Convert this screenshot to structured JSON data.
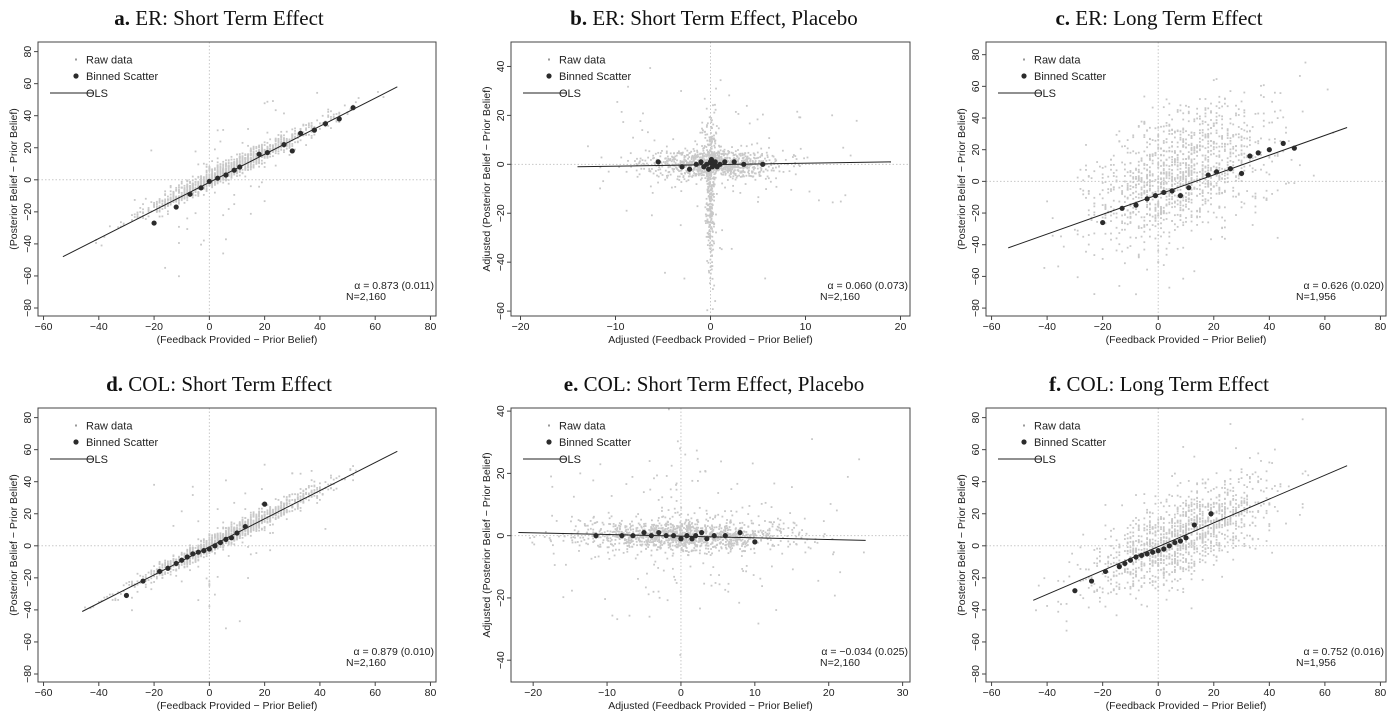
{
  "figure": {
    "legend_labels": [
      "Raw data",
      "Binned Scatter",
      "OLS"
    ],
    "colors": {
      "raw": "#c8c8c8",
      "binned": "#2b2b2b",
      "ols": "#222222",
      "refline": "#c8c8c8",
      "frame": "#444444"
    }
  },
  "chart_data": [
    {
      "id": "a",
      "type": "scatter",
      "title_letter": "a.",
      "title_text": "ER: Short Term Effect",
      "xlabel": "(Feedback Provided − Prior Belief)",
      "ylabel": "(Posterior Belief − Prior Belief)",
      "xlim": [
        -62,
        82
      ],
      "ylim": [
        -85,
        86
      ],
      "xticks": [
        -60,
        -40,
        -20,
        0,
        20,
        40,
        60,
        80
      ],
      "yticks": [
        -80,
        -60,
        -40,
        -20,
        0,
        20,
        40,
        60,
        80
      ],
      "xtick_labels": [
        "−60",
        "−40",
        "−20",
        "0",
        "20",
        "40",
        "60",
        "80"
      ],
      "ytick_labels": [
        "−80",
        "−60",
        "−40",
        "−20",
        "0",
        "20",
        "40",
        "60",
        "80"
      ],
      "raw_pattern": "diagonal",
      "raw_slope": 0.87,
      "raw_xrange": [
        -45,
        65
      ],
      "raw_noise": 3,
      "binned": [
        [
          -20,
          -27
        ],
        [
          -12,
          -17
        ],
        [
          -7,
          -9
        ],
        [
          -3,
          -5
        ],
        [
          0,
          -1
        ],
        [
          3,
          1
        ],
        [
          6,
          3
        ],
        [
          9,
          6
        ],
        [
          11,
          8
        ],
        [
          18,
          16
        ],
        [
          21,
          17
        ],
        [
          27,
          22
        ],
        [
          30,
          18
        ],
        [
          33,
          29
        ],
        [
          38,
          31
        ],
        [
          42,
          35
        ],
        [
          47,
          38
        ],
        [
          52,
          45
        ]
      ],
      "ols": [
        [
          -53,
          -48
        ],
        [
          68,
          58
        ]
      ],
      "legend": [
        "Raw data",
        "Binned Scatter",
        "OLS"
      ],
      "annotation": {
        "alpha": "α = 0.873 (0.011)",
        "n": "N=2,160"
      }
    },
    {
      "id": "b",
      "type": "scatter",
      "title_letter": "b.",
      "title_text": "ER: Short Term Effect, Placebo",
      "xlabel": "Adjusted (Feedback Provided − Prior Belief)",
      "ylabel": "Adjusted (Posterior Belief − Prior Belief)",
      "xlim": [
        -21,
        21
      ],
      "ylim": [
        -62,
        50
      ],
      "xticks": [
        -20,
        -10,
        0,
        10,
        20
      ],
      "yticks": [
        -60,
        -40,
        -20,
        0,
        20,
        40
      ],
      "xtick_labels": [
        "−20",
        "−10",
        "0",
        "10",
        "20"
      ],
      "ytick_labels": [
        "−60",
        "−40",
        "−20",
        "0",
        "20",
        "40"
      ],
      "raw_pattern": "cross_b",
      "binned": [
        [
          -5.5,
          1
        ],
        [
          -3,
          -1
        ],
        [
          -2.2,
          -2
        ],
        [
          -1.5,
          0
        ],
        [
          -1,
          1
        ],
        [
          -0.7,
          -1
        ],
        [
          -0.4,
          0
        ],
        [
          -0.2,
          -2
        ],
        [
          0,
          1
        ],
        [
          0.1,
          2
        ],
        [
          0.2,
          -1
        ],
        [
          0.3,
          0
        ],
        [
          0.5,
          1
        ],
        [
          0.7,
          -1
        ],
        [
          1,
          0
        ],
        [
          1.5,
          1
        ],
        [
          2.5,
          1
        ],
        [
          3.5,
          0
        ],
        [
          5.5,
          0
        ]
      ],
      "ols": [
        [
          -14,
          -1
        ],
        [
          19,
          1
        ]
      ],
      "legend": [
        "Raw data",
        "Binned Scatter",
        "OLS"
      ],
      "annotation": {
        "alpha": "α = 0.060 (0.073)",
        "n": "N=2,160"
      }
    },
    {
      "id": "c",
      "type": "scatter",
      "title_letter": "c.",
      "title_text": "ER: Long Term Effect",
      "xlabel": "(Feedback Provided − Prior Belief)",
      "ylabel": "(Posterior Belief − Prior Belief)",
      "xlim": [
        -62,
        82
      ],
      "ylim": [
        -85,
        88
      ],
      "xticks": [
        -60,
        -40,
        -20,
        0,
        20,
        40,
        60,
        80
      ],
      "yticks": [
        -80,
        -60,
        -40,
        -20,
        0,
        20,
        40,
        60,
        80
      ],
      "xtick_labels": [
        "−60",
        "−40",
        "−20",
        "0",
        "20",
        "40",
        "60",
        "80"
      ],
      "ytick_labels": [
        "−80",
        "−60",
        "−40",
        "−20",
        "0",
        "20",
        "40",
        "60",
        "80"
      ],
      "raw_pattern": "diagonal",
      "raw_slope": 0.63,
      "raw_xrange": [
        -45,
        65
      ],
      "raw_noise": 20,
      "binned": [
        [
          -20,
          -26
        ],
        [
          -13,
          -17
        ],
        [
          -8,
          -15
        ],
        [
          -4,
          -11
        ],
        [
          -1,
          -9
        ],
        [
          2,
          -7
        ],
        [
          5,
          -6
        ],
        [
          8,
          -9
        ],
        [
          11,
          -4
        ],
        [
          18,
          4
        ],
        [
          21,
          6
        ],
        [
          26,
          8
        ],
        [
          30,
          5
        ],
        [
          33,
          16
        ],
        [
          36,
          18
        ],
        [
          40,
          20
        ],
        [
          45,
          24
        ],
        [
          49,
          21
        ]
      ],
      "ols": [
        [
          -54,
          -42
        ],
        [
          68,
          34
        ]
      ],
      "legend": [
        "Raw data",
        "Binned Scatter",
        "OLS"
      ],
      "annotation": {
        "alpha": "α = 0.626 (0.020)",
        "n": "N=1,956"
      }
    },
    {
      "id": "d",
      "type": "scatter",
      "title_letter": "d.",
      "title_text": "COL: Short Term Effect",
      "xlabel": "(Feedback Provided − Prior Belief)",
      "ylabel": "(Posterior Belief − Prior Belief)",
      "xlim": [
        -62,
        82
      ],
      "ylim": [
        -85,
        86
      ],
      "xticks": [
        -60,
        -40,
        -20,
        0,
        20,
        40,
        60,
        80
      ],
      "yticks": [
        -80,
        -60,
        -40,
        -20,
        0,
        20,
        40,
        60,
        80
      ],
      "xtick_labels": [
        "−60",
        "−40",
        "−20",
        "0",
        "20",
        "40",
        "60",
        "80"
      ],
      "ytick_labels": [
        "−80",
        "−60",
        "−40",
        "−20",
        "0",
        "20",
        "40",
        "60",
        "80"
      ],
      "raw_pattern": "diagonal",
      "raw_slope": 0.88,
      "raw_xrange": [
        -45,
        55
      ],
      "raw_noise": 3,
      "binned": [
        [
          -30,
          -31
        ],
        [
          -24,
          -22
        ],
        [
          -18,
          -16
        ],
        [
          -15,
          -14
        ],
        [
          -12,
          -11
        ],
        [
          -10,
          -9
        ],
        [
          -8,
          -7
        ],
        [
          -6,
          -5
        ],
        [
          -4,
          -4
        ],
        [
          -2,
          -3
        ],
        [
          0,
          -2
        ],
        [
          2,
          0
        ],
        [
          4,
          2
        ],
        [
          6,
          4
        ],
        [
          8,
          5
        ],
        [
          10,
          8
        ],
        [
          13,
          12
        ],
        [
          20,
          26
        ]
      ],
      "ols": [
        [
          -46,
          -41
        ],
        [
          68,
          59
        ]
      ],
      "legend": [
        "Raw data",
        "Binned Scatter",
        "OLS"
      ],
      "annotation": {
        "alpha": "α = 0.879 (0.010)",
        "n": "N=2,160"
      }
    },
    {
      "id": "e",
      "type": "scatter",
      "title_letter": "e.",
      "title_text": "COL: Short Term Effect, Placebo",
      "xlabel": "Adjusted (Feedback Provided − Prior Belief)",
      "ylabel": "Adjusted (Posterior Belief − Prior Belief)",
      "xlim": [
        -23,
        31
      ],
      "ylim": [
        -47,
        41
      ],
      "xticks": [
        -20,
        -10,
        0,
        10,
        20,
        30
      ],
      "yticks": [
        -40,
        -20,
        0,
        20,
        40
      ],
      "xtick_labels": [
        "−20",
        "−10",
        "0",
        "10",
        "20",
        "30"
      ],
      "ytick_labels": [
        "−40",
        "−20",
        "0",
        "20",
        "40"
      ],
      "raw_pattern": "cross_e",
      "binned": [
        [
          -11.5,
          0
        ],
        [
          -8,
          0
        ],
        [
          -6.5,
          0
        ],
        [
          -5,
          1
        ],
        [
          -4,
          0
        ],
        [
          -3,
          1
        ],
        [
          -2,
          0
        ],
        [
          -1,
          0
        ],
        [
          0,
          -1
        ],
        [
          0.8,
          0
        ],
        [
          1.5,
          -1
        ],
        [
          2,
          0
        ],
        [
          2.8,
          1
        ],
        [
          3.5,
          -1
        ],
        [
          4.5,
          0
        ],
        [
          6,
          0
        ],
        [
          8,
          1
        ],
        [
          10,
          -2
        ]
      ],
      "ols": [
        [
          -22,
          1
        ],
        [
          25,
          -1.5
        ]
      ],
      "legend": [
        "Raw data",
        "Binned Scatter",
        "OLS"
      ],
      "annotation": {
        "alpha": "α = −0.034 (0.025)",
        "n": "N=2,160"
      }
    },
    {
      "id": "f",
      "type": "scatter",
      "title_letter": "f.",
      "title_text": "COL: Long Term Effect",
      "xlabel": "(Feedback Provided − Prior Belief)",
      "ylabel": "(Posterior Belief − Prior Belief)",
      "xlim": [
        -62,
        82
      ],
      "ylim": [
        -85,
        86
      ],
      "xticks": [
        -60,
        -40,
        -20,
        0,
        20,
        40,
        60,
        80
      ],
      "yticks": [
        -80,
        -60,
        -40,
        -20,
        0,
        20,
        40,
        60,
        80
      ],
      "xtick_labels": [
        "−60",
        "−40",
        "−20",
        "0",
        "20",
        "40",
        "60",
        "80"
      ],
      "ytick_labels": [
        "−80",
        "−60",
        "−40",
        "−20",
        "0",
        "20",
        "40",
        "60",
        "80"
      ],
      "raw_pattern": "diagonal",
      "raw_slope": 0.75,
      "raw_xrange": [
        -45,
        55
      ],
      "raw_noise": 12,
      "binned": [
        [
          -30,
          -28
        ],
        [
          -24,
          -22
        ],
        [
          -19,
          -16
        ],
        [
          -14,
          -13
        ],
        [
          -12,
          -11
        ],
        [
          -10,
          -9
        ],
        [
          -8,
          -7
        ],
        [
          -6,
          -6
        ],
        [
          -4,
          -5
        ],
        [
          -2,
          -4
        ],
        [
          0,
          -3
        ],
        [
          2,
          -2
        ],
        [
          4,
          0
        ],
        [
          6,
          2
        ],
        [
          8,
          3
        ],
        [
          10,
          5
        ],
        [
          13,
          13
        ],
        [
          19,
          20
        ]
      ],
      "ols": [
        [
          -45,
          -34
        ],
        [
          68,
          50
        ]
      ],
      "legend": [
        "Raw data",
        "Binned Scatter",
        "OLS"
      ],
      "annotation": {
        "alpha": "α = 0.752 (0.016)",
        "n": "N=1,956"
      }
    }
  ]
}
